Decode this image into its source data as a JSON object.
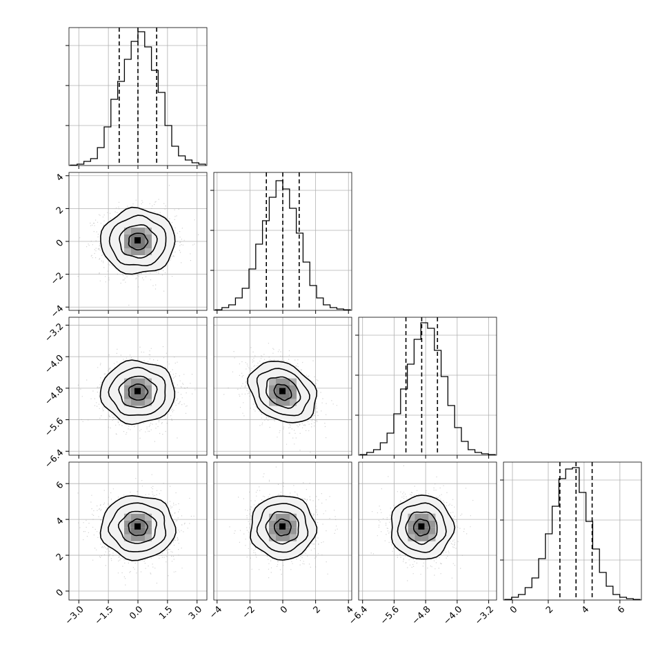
{
  "chart_data": {
    "type": "corner",
    "parameters": [
      {
        "ylim_hist": [
          0,
          1.0
        ],
        "ticks": [
          "−3.0",
          "−1.5",
          "0.0",
          "1.5",
          "3.0"
        ],
        "tick_values": [
          -3.0,
          -1.5,
          0.0,
          1.5,
          3.0
        ],
        "range": [
          -3.5,
          3.5
        ],
        "quantiles": [
          -0.95,
          0.0,
          0.95
        ],
        "center": 0.0,
        "sigma": 0.95,
        "hist": [
          0.003,
          0.01,
          0.03,
          0.05,
          0.13,
          0.28,
          0.48,
          0.61,
          0.77,
          0.9,
          0.97,
          0.86,
          0.69,
          0.53,
          0.29,
          0.14,
          0.07,
          0.04,
          0.02,
          0.01
        ]
      },
      {
        "ticks": [
          "−4",
          "−2",
          "0",
          "2",
          "4"
        ],
        "tick_values": [
          -4,
          -2,
          0,
          2,
          4
        ],
        "range": [
          -4.2,
          4.2
        ],
        "quantiles": [
          -1.0,
          0.0,
          1.0
        ],
        "center": 0.0,
        "sigma": 1.0,
        "hist": [
          0.004,
          0.02,
          0.04,
          0.09,
          0.16,
          0.3,
          0.48,
          0.65,
          0.82,
          0.94,
          0.88,
          0.74,
          0.56,
          0.35,
          0.18,
          0.09,
          0.04,
          0.02,
          0.01,
          0.004
        ]
      },
      {
        "ticks": [
          "−6.4",
          "−5.6",
          "−4.8",
          "−4.0",
          "−3.2"
        ],
        "tick_values": [
          -6.4,
          -5.6,
          -4.8,
          -4.0,
          -3.2
        ],
        "range": [
          -6.5,
          -3.0
        ],
        "quantiles": [
          -5.3,
          -4.9,
          -4.5
        ],
        "center": -4.9,
        "sigma": 0.4,
        "hist": [
          0.004,
          0.02,
          0.04,
          0.09,
          0.16,
          0.3,
          0.48,
          0.66,
          0.84,
          0.96,
          0.92,
          0.76,
          0.57,
          0.36,
          0.2,
          0.1,
          0.04,
          0.02,
          0.01,
          0.004
        ]
      },
      {
        "ticks": [
          "0",
          "2",
          "4",
          "6"
        ],
        "tick_values": [
          0,
          2,
          4,
          6
        ],
        "range": [
          -0.5,
          7.2
        ],
        "quantiles": [
          2.65,
          3.55,
          4.45
        ],
        "center": 3.55,
        "sigma": 0.9,
        "hist": [
          0.004,
          0.02,
          0.04,
          0.09,
          0.16,
          0.3,
          0.48,
          0.68,
          0.88,
          0.95,
          0.96,
          0.78,
          0.57,
          0.37,
          0.2,
          0.1,
          0.04,
          0.02,
          0.01,
          0.004
        ]
      }
    ],
    "correlations": {
      "2-1": -0.35
    },
    "contour_levels": [
      0.12,
      0.39,
      0.68,
      0.86
    ],
    "grid": true,
    "scatter_color": "#9a9a9a",
    "line_color": "#000000"
  }
}
